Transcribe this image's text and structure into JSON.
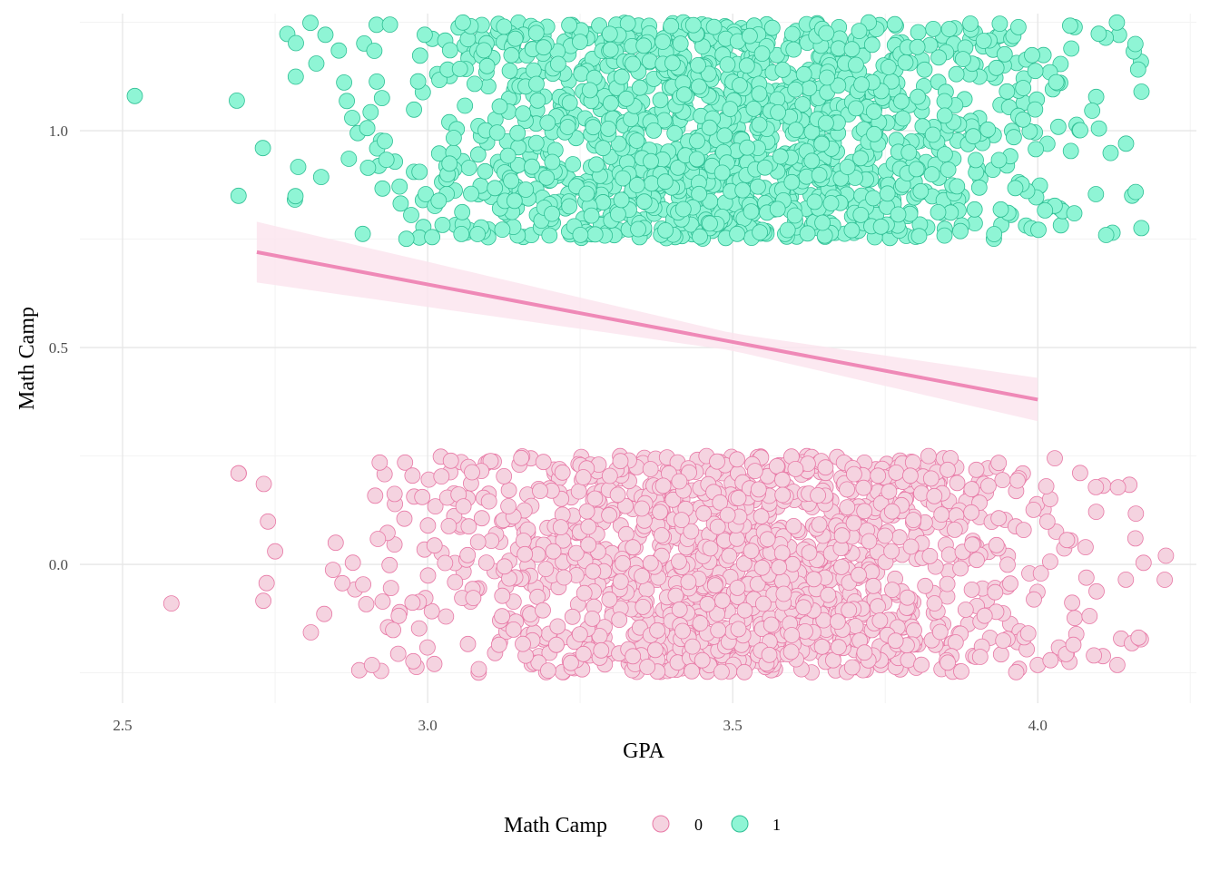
{
  "chart_data": {
    "type": "scatter",
    "title": "",
    "xlabel": "GPA",
    "ylabel": "Math Camp",
    "xlim": [
      2.43,
      4.26
    ],
    "ylim": [
      -0.32,
      1.27
    ],
    "x_ticks": [
      "2.5",
      "3.0",
      "3.5",
      "4.0"
    ],
    "y_ticks": [
      "0.0",
      "0.5",
      "1.0"
    ],
    "grid": true,
    "jitter": "vertical jitter of about ±0.25 around each group's value",
    "legend": {
      "title": "Math Camp",
      "position": "bottom",
      "entries": [
        {
          "label": "0",
          "fill": "#f5d3e0",
          "stroke": "#e879a6"
        },
        {
          "label": "1",
          "fill": "#8ff5d5",
          "stroke": "#2fbf94"
        }
      ]
    },
    "series": [
      {
        "name": "0",
        "base_y": 0,
        "point_count": 1500,
        "gpa_range": [
          2.58,
          4.21
        ],
        "gpa_center": 3.5
      },
      {
        "name": "1",
        "base_y": 1,
        "point_count": 1500,
        "gpa_range": [
          2.52,
          4.17
        ],
        "gpa_center": 3.5
      }
    ],
    "outliers": [
      {
        "series": "0",
        "x": 2.58,
        "y": -0.09
      },
      {
        "series": "0",
        "x": 2.69,
        "y": 0.21
      },
      {
        "series": "0",
        "x": 2.75,
        "y": 0.03
      },
      {
        "series": "0",
        "x": 4.21,
        "y": 0.02
      },
      {
        "series": "0",
        "x": 4.16,
        "y": 0.06
      },
      {
        "series": "1",
        "x": 2.52,
        "y": 1.08
      },
      {
        "series": "1",
        "x": 2.69,
        "y": 0.85
      },
      {
        "series": "1",
        "x": 2.73,
        "y": 0.96
      },
      {
        "series": "1",
        "x": 4.17,
        "y": 1.09
      },
      {
        "series": "1",
        "x": 4.16,
        "y": 1.2
      }
    ],
    "regression_line": {
      "color": "#ef89b7",
      "band_color": "#fbe3ee",
      "points": [
        {
          "x": 2.72,
          "y": 0.72
        },
        {
          "x": 4.0,
          "y": 0.38
        }
      ],
      "band_halfwidth": [
        {
          "x": 2.72,
          "y": 0.07
        },
        {
          "x": 3.5,
          "y": 0.02
        },
        {
          "x": 4.0,
          "y": 0.05
        }
      ]
    }
  }
}
